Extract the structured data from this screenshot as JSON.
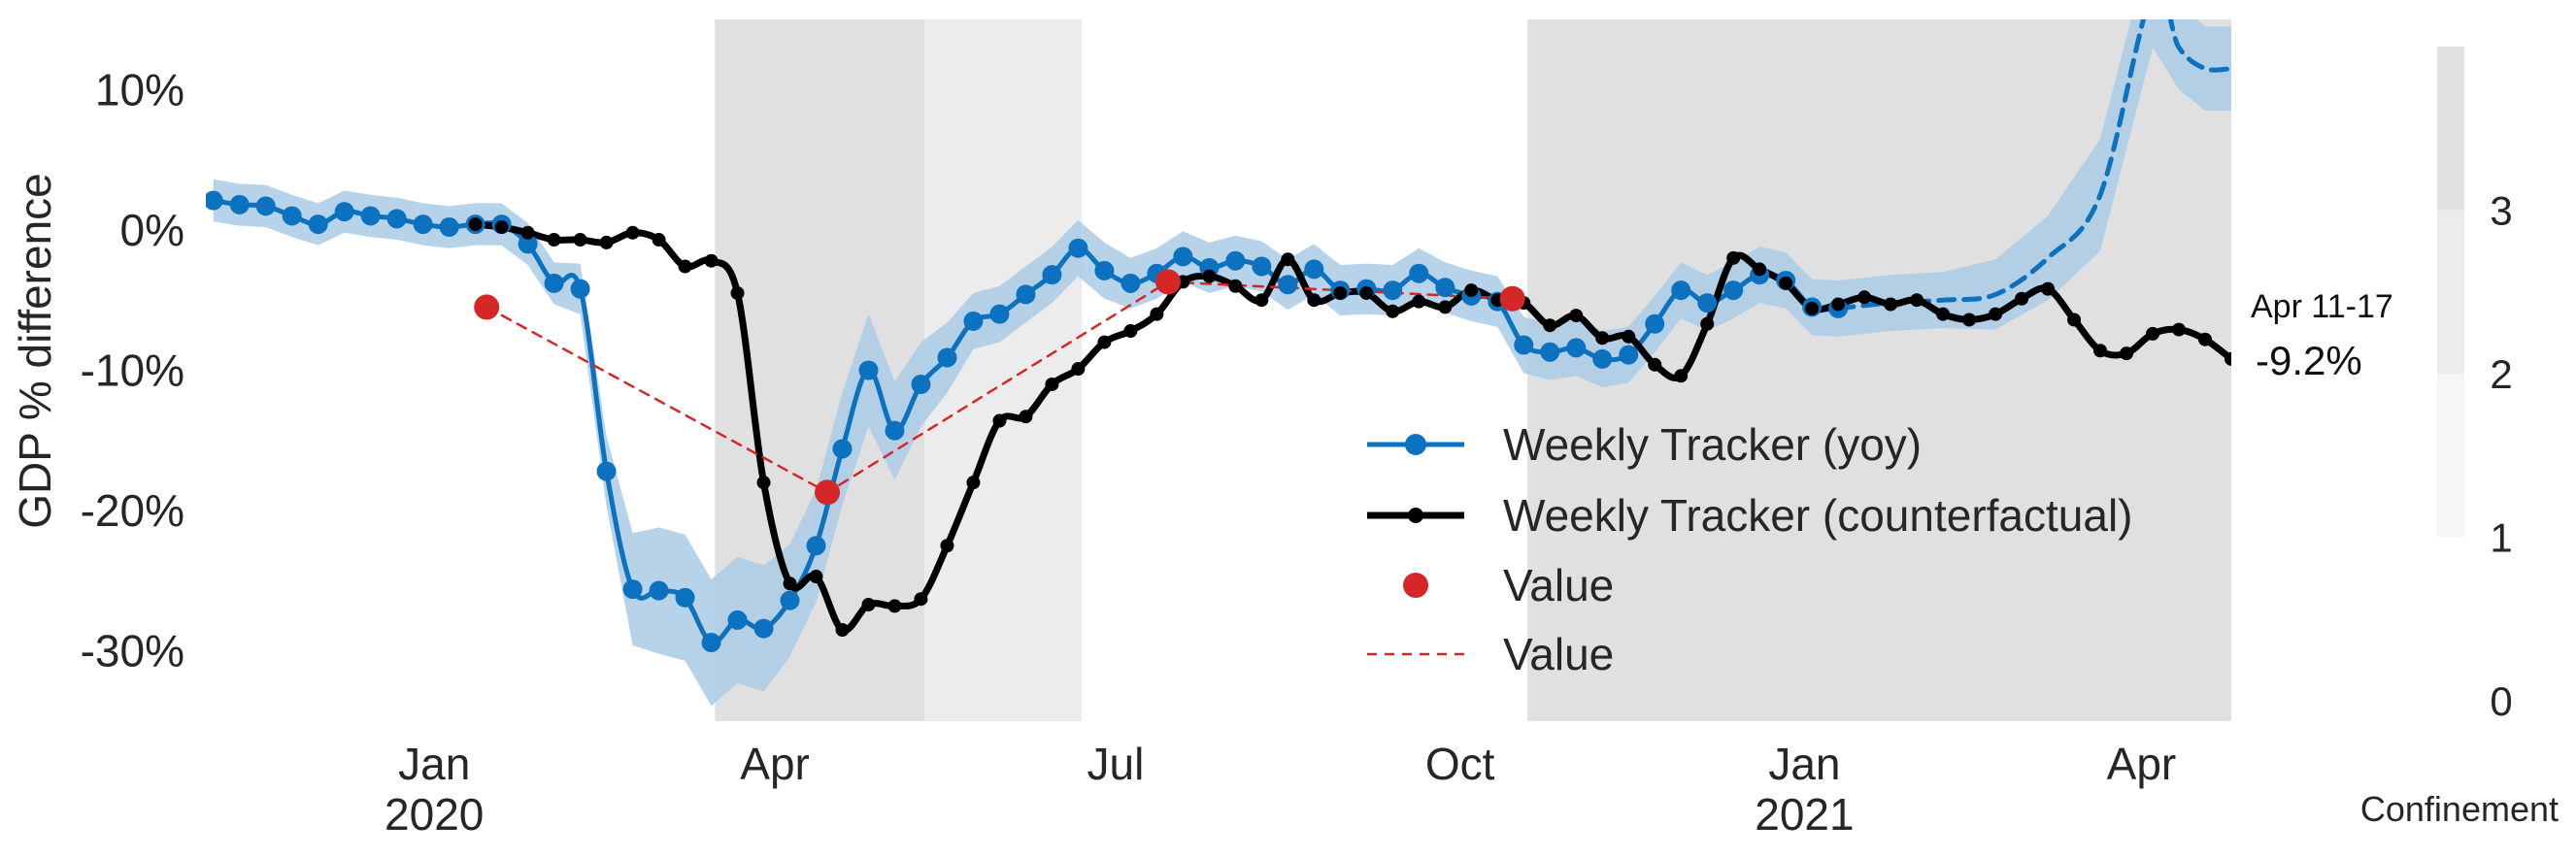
{
  "chart_data": {
    "type": "line",
    "title": "",
    "xlabel": "",
    "ylabel": "GDP % difference",
    "x_axis": {
      "start": "2019-11-01",
      "end": "2021-04-25",
      "ticks": [
        {
          "date": "2020-01-01",
          "label": "Jan",
          "year": "2020"
        },
        {
          "date": "2020-04-01",
          "label": "Apr",
          "year": ""
        },
        {
          "date": "2020-07-01",
          "label": "Jul",
          "year": ""
        },
        {
          "date": "2020-10-01",
          "label": "Oct",
          "year": ""
        },
        {
          "date": "2021-01-01",
          "label": "Jan",
          "year": "2021"
        },
        {
          "date": "2021-04-01",
          "label": "Apr",
          "year": ""
        }
      ]
    },
    "ylim": [
      -35,
      15
    ],
    "y_ticks": [
      {
        "value": 10,
        "label": "10%"
      },
      {
        "value": 0,
        "label": "0%"
      },
      {
        "value": -10,
        "label": "-10%"
      },
      {
        "value": -20,
        "label": "-20%"
      },
      {
        "value": -30,
        "label": "-30%"
      }
    ],
    "grid": false,
    "legend_position": "bottom-center",
    "confinement_periods": [
      {
        "start": "2020-03-16",
        "end": "2020-05-11",
        "level": 3
      },
      {
        "start": "2020-05-11",
        "end": "2020-06-22",
        "level": 2
      },
      {
        "start": "2020-10-19",
        "end": "2021-04-25",
        "level": 3
      }
    ],
    "colorbar": {
      "label": "Confinement",
      "ticks": [
        {
          "value": 0,
          "label": "0"
        },
        {
          "value": 1,
          "label": "1"
        },
        {
          "value": 2,
          "label": "2"
        },
        {
          "value": 3,
          "label": "3"
        }
      ],
      "levels": [
        {
          "from": 1,
          "to": 2,
          "color": "#f6f6f6"
        },
        {
          "from": 2,
          "to": 3,
          "color": "#ececec"
        },
        {
          "from": 3,
          "to": 4,
          "color": "#e0e0e0"
        }
      ]
    },
    "series": [
      {
        "name": "Weekly Tracker (yoy)",
        "color": "#0c72c0",
        "band_color": "#a9cbe5",
        "marker": "large-circle",
        "x": [
          "2019-11-03",
          "2019-11-10",
          "2019-11-17",
          "2019-11-24",
          "2019-12-01",
          "2019-12-08",
          "2019-12-15",
          "2019-12-22",
          "2019-12-29",
          "2020-01-05",
          "2020-01-12",
          "2020-01-19",
          "2020-01-26",
          "2020-02-02",
          "2020-02-09",
          "2020-02-16",
          "2020-02-23",
          "2020-03-01",
          "2020-03-08",
          "2020-03-15",
          "2020-03-22",
          "2020-03-29",
          "2020-04-05",
          "2020-04-12",
          "2020-04-19",
          "2020-04-26",
          "2020-05-03",
          "2020-05-10",
          "2020-05-17",
          "2020-05-24",
          "2020-05-31",
          "2020-06-07",
          "2020-06-14",
          "2020-06-21",
          "2020-06-28",
          "2020-07-05",
          "2020-07-12",
          "2020-07-19",
          "2020-07-26",
          "2020-08-02",
          "2020-08-09",
          "2020-08-16",
          "2020-08-23",
          "2020-08-30",
          "2020-09-06",
          "2020-09-13",
          "2020-09-20",
          "2020-09-27",
          "2020-10-04",
          "2020-10-11",
          "2020-10-18",
          "2020-10-25",
          "2020-11-01",
          "2020-11-08",
          "2020-11-15",
          "2020-11-22",
          "2020-11-29",
          "2020-12-06",
          "2020-12-13",
          "2020-12-20",
          "2020-12-27",
          "2021-01-03",
          "2021-01-10"
        ],
        "y": [
          2.1,
          1.8,
          1.7,
          1.0,
          0.4,
          1.3,
          1.0,
          0.8,
          0.4,
          0.2,
          0.4,
          0.4,
          -1.0,
          -3.8,
          -4.2,
          -17.2,
          -25.6,
          -25.7,
          -26.2,
          -29.4,
          -27.8,
          -28.4,
          -26.4,
          -22.5,
          -15.6,
          -10.0,
          -14.3,
          -11.0,
          -9.1,
          -6.5,
          -6.0,
          -4.6,
          -3.2,
          -1.3,
          -2.9,
          -3.8,
          -3.1,
          -1.9,
          -2.7,
          -2.2,
          -2.6,
          -3.9,
          -2.8,
          -4.3,
          -4.2,
          -4.3,
          -3.1,
          -4.1,
          -4.7,
          -5.1,
          -8.2,
          -8.7,
          -8.4,
          -9.2,
          -8.9,
          -6.7,
          -4.3,
          -5.2,
          -4.3,
          -3.2,
          -3.6,
          -5.5,
          -5.6
        ],
        "band_halfwidth": [
          1.5,
          1.5,
          1.5,
          1.5,
          1.5,
          1.5,
          1.5,
          1.5,
          1.5,
          1.5,
          1.5,
          1.5,
          1.5,
          1.5,
          1.8,
          2.5,
          4,
          4.5,
          4.5,
          4.5,
          4.5,
          4.5,
          4,
          4,
          4,
          4,
          3.5,
          3,
          2.5,
          2,
          2,
          2,
          2,
          2,
          2,
          1.8,
          1.8,
          1.8,
          1.8,
          1.8,
          1.8,
          1.8,
          1.8,
          1.8,
          1.8,
          1.8,
          1.8,
          1.8,
          1.8,
          1.8,
          2,
          2,
          2,
          2,
          2,
          2,
          2,
          2,
          2,
          2,
          2,
          2,
          2
        ]
      },
      {
        "name": "Weekly Tracker (yoy)",
        "color": "#0c72c0",
        "band_color": "#a9cbe5",
        "style": "dashed",
        "x": [
          "2021-01-10",
          "2021-01-24",
          "2021-02-07",
          "2021-02-21",
          "2021-03-07",
          "2021-03-21",
          "2021-04-04",
          "2021-04-11",
          "2021-04-18",
          "2021-04-25"
        ],
        "y": [
          -5.6,
          -5.2,
          -5.0,
          -4.6,
          -2.0,
          2.5,
          17.0,
          13.0,
          11.5,
          11.5
        ],
        "band_halfwidth": [
          2,
          2,
          2,
          2.5,
          3,
          4,
          4,
          3,
          3,
          3
        ]
      },
      {
        "name": "Weekly Tracker (counterfactual)",
        "color": "#000000",
        "marker": "small-circle",
        "x": [
          "2020-01-12",
          "2020-01-19",
          "2020-01-26",
          "2020-02-02",
          "2020-02-09",
          "2020-02-16",
          "2020-02-23",
          "2020-03-01",
          "2020-03-08",
          "2020-03-15",
          "2020-03-22",
          "2020-03-29",
          "2020-04-05",
          "2020-04-12",
          "2020-04-19",
          "2020-04-26",
          "2020-05-03",
          "2020-05-10",
          "2020-05-17",
          "2020-05-24",
          "2020-05-31",
          "2020-06-07",
          "2020-06-14",
          "2020-06-21",
          "2020-06-28",
          "2020-07-05",
          "2020-07-12",
          "2020-07-19",
          "2020-07-26",
          "2020-08-02",
          "2020-08-09",
          "2020-08-16",
          "2020-08-23",
          "2020-08-30",
          "2020-09-06",
          "2020-09-13",
          "2020-09-20",
          "2020-09-27",
          "2020-10-04",
          "2020-10-11",
          "2020-10-18",
          "2020-10-25",
          "2020-11-01",
          "2020-11-08",
          "2020-11-15",
          "2020-11-22",
          "2020-11-29",
          "2020-12-06",
          "2020-12-13",
          "2020-12-20",
          "2020-12-27",
          "2021-01-03",
          "2021-01-10",
          "2021-01-17",
          "2021-01-24",
          "2021-01-31",
          "2021-02-07",
          "2021-02-14",
          "2021-02-21",
          "2021-02-28",
          "2021-03-07",
          "2021-03-14",
          "2021-03-21",
          "2021-03-28",
          "2021-04-04",
          "2021-04-11",
          "2021-04-18",
          "2021-04-25"
        ],
        "y": [
          0.4,
          0.2,
          -0.2,
          -0.7,
          -0.7,
          -0.9,
          -0.2,
          -0.7,
          -2.6,
          -2.2,
          -4.5,
          -18.0,
          -25.2,
          -24.7,
          -28.5,
          -26.7,
          -26.8,
          -26.3,
          -22.5,
          -18.0,
          -13.6,
          -13.3,
          -11.0,
          -9.9,
          -8.0,
          -7.2,
          -6.0,
          -3.7,
          -3.3,
          -4.0,
          -5.0,
          -2.1,
          -5.0,
          -4.5,
          -4.5,
          -5.8,
          -5.1,
          -5.5,
          -4.3,
          -5.0,
          -5.2,
          -6.8,
          -6.1,
          -7.7,
          -7.6,
          -9.6,
          -10.4,
          -6.7,
          -2.0,
          -2.8,
          -3.8,
          -5.6,
          -5.3,
          -4.8,
          -5.3,
          -5.0,
          -6.0,
          -6.4,
          -6.0,
          -4.9,
          -4.2,
          -6.4,
          -8.6,
          -8.8,
          -7.4,
          -7.1,
          -7.8,
          -9.2
        ]
      },
      {
        "name": "Value",
        "color": "#d62728",
        "marker": "red-dot",
        "x": [
          "2020-01-15",
          "2020-04-15",
          "2020-07-15",
          "2020-10-15"
        ],
        "y": [
          -5.5,
          -18.7,
          -3.7,
          -4.9
        ]
      },
      {
        "name": "Value",
        "color": "#d62728",
        "style": "dashed",
        "x": [
          "2020-01-15",
          "2020-04-15",
          "2020-07-15",
          "2020-10-15"
        ],
        "y": [
          -5.5,
          -18.7,
          -3.7,
          -4.9
        ]
      }
    ],
    "legend": [
      {
        "label": "Weekly Tracker (yoy)",
        "kind": "yoy"
      },
      {
        "label": "Weekly Tracker (counterfactual)",
        "kind": "cf"
      },
      {
        "label": "Value",
        "kind": "dot"
      },
      {
        "label": "Value",
        "kind": "dashed"
      }
    ],
    "annotations": [
      {
        "text": "Apr 11-17",
        "size": "small"
      },
      {
        "text": "-9.2%",
        "size": "big"
      }
    ]
  }
}
